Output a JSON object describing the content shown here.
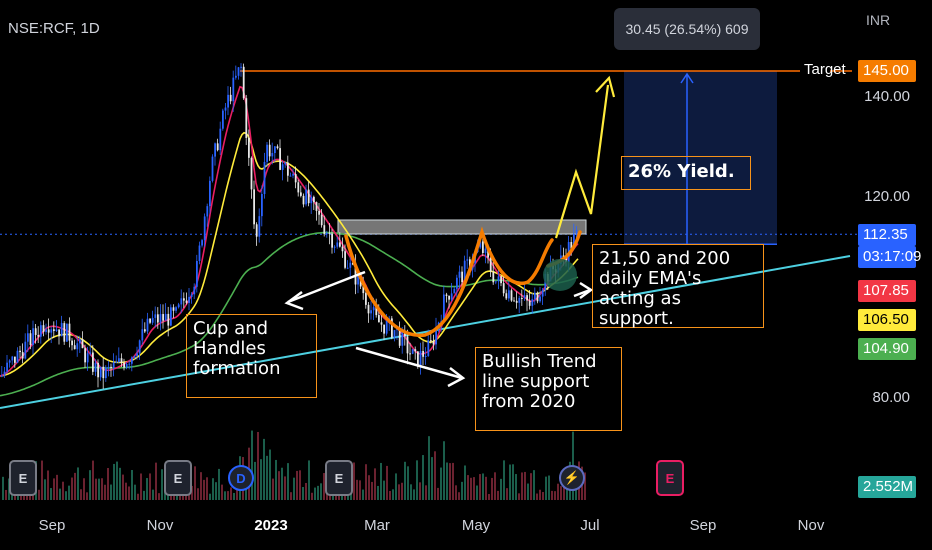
{
  "header": {
    "symbol": "NSE:RCF, 1D",
    "currency": "INR"
  },
  "tooltip": {
    "text": "30.45 (26.54%) 609"
  },
  "target": {
    "label": "Target",
    "price": "145.00"
  },
  "price_axis": {
    "ticks": [
      "140.00",
      "120.00",
      "80.00"
    ],
    "tags": [
      {
        "id": "last",
        "value": "112.35",
        "bg": "#2962ff",
        "fg": "#ffffff"
      },
      {
        "id": "countdown",
        "value": "03:17:09",
        "bg": "#2962ff",
        "fg": "#ffffff"
      },
      {
        "id": "ema200",
        "value": "107.85",
        "bg": "#f23645",
        "fg": "#ffffff"
      },
      {
        "id": "ema50",
        "value": "106.50",
        "bg": "#ffeb3b",
        "fg": "#000000"
      },
      {
        "id": "ema21",
        "value": "104.90",
        "bg": "#4caf50",
        "fg": "#ffffff"
      },
      {
        "id": "volume",
        "value": "2.552M",
        "bg": "#26a69a",
        "fg": "#ffffff"
      }
    ]
  },
  "time_axis": [
    "Sep",
    "Nov",
    "2023",
    "Mar",
    "May",
    "Jul",
    "Sep",
    "Nov"
  ],
  "annotations": {
    "cup": "Cup and Handles formation",
    "trend": "Bullish Trend line support from 2020",
    "ema": "21,50 and 200 daily EMA's acting as support.",
    "yield": "26% Yield."
  },
  "events": [
    {
      "type": "earnings",
      "icon": "E"
    },
    {
      "type": "earnings",
      "icon": "E"
    },
    {
      "type": "dividend",
      "icon": "D"
    },
    {
      "type": "earnings",
      "icon": "E"
    },
    {
      "type": "split",
      "icon": "⚡"
    },
    {
      "type": "earnings-upcoming",
      "icon": "E"
    }
  ],
  "colors": {
    "up": "#2962ff",
    "down": "#e8e8e8",
    "ema21": "#e91e63",
    "ema50": "#ffeb3b",
    "ema200": "#4caf50",
    "trendline": "#4dd0e1",
    "cup": "#f57c00",
    "projection": "#ffeb3b",
    "target_line": "#ff6d00",
    "box": "#0d1b3e"
  },
  "chart_data": {
    "type": "candlestick",
    "title": "NSE:RCF, 1D",
    "y_axis": {
      "ticks": [
        80,
        120,
        140
      ],
      "unit": "INR"
    },
    "x_ticks": [
      "Sep",
      "Nov",
      "2023",
      "Mar",
      "May",
      "Jul",
      "Sep",
      "Nov"
    ],
    "last_price": 112.35,
    "target_price": 145.0,
    "change": {
      "points": 30.45,
      "percent": 26.54,
      "bars": 609
    },
    "ema": {
      "ema21": 104.9,
      "ema50": 106.5,
      "ema200": 107.85
    },
    "volume_last": "2.552M",
    "close_series": [
      {
        "x": "Aug",
        "y": 84
      },
      {
        "x": "Sep",
        "y": 92
      },
      {
        "x": "Sep",
        "y": 95
      },
      {
        "x": "Oct",
        "y": 91
      },
      {
        "x": "Oct",
        "y": 97
      },
      {
        "x": "Nov",
        "y": 95
      },
      {
        "x": "Nov",
        "y": 104
      },
      {
        "x": "Dec",
        "y": 128
      },
      {
        "x": "Dec",
        "y": 143
      },
      {
        "x": "Dec",
        "y": 107
      },
      {
        "x": "2023",
        "y": 130
      },
      {
        "x": "Jan",
        "y": 121
      },
      {
        "x": "Feb",
        "y": 113
      },
      {
        "x": "Feb",
        "y": 104
      },
      {
        "x": "Mar",
        "y": 96
      },
      {
        "x": "Mar",
        "y": 94
      },
      {
        "x": "Apr",
        "y": 87
      },
      {
        "x": "Apr",
        "y": 97
      },
      {
        "x": "May",
        "y": 106
      },
      {
        "x": "May",
        "y": 111
      },
      {
        "x": "May",
        "y": 104
      },
      {
        "x": "Jun",
        "y": 101
      },
      {
        "x": "Jun",
        "y": 108
      },
      {
        "x": "Jun",
        "y": 112.35
      }
    ]
  }
}
